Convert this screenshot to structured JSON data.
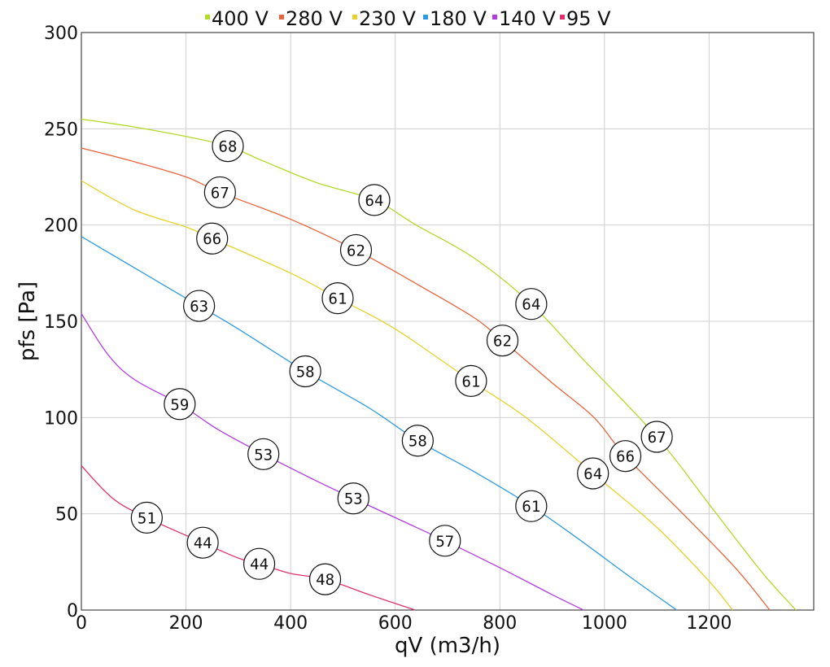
{
  "chart_data": {
    "type": "line",
    "title": "",
    "xlabel": "qV (m3/h)",
    "ylabel": "pfs [Pa]",
    "xlim": [
      0,
      1400
    ],
    "ylim": [
      0,
      300
    ],
    "x_ticks": [
      0,
      200,
      400,
      600,
      800,
      1000,
      1200
    ],
    "y_ticks": [
      0,
      50,
      100,
      150,
      200,
      250,
      300
    ],
    "x_tick_labels": [
      "0",
      "200",
      "400",
      "600",
      "800",
      "1000",
      "1200"
    ],
    "y_tick_labels": [
      "0",
      "50",
      "100",
      "150",
      "200",
      "250",
      "300"
    ],
    "grid": true,
    "legend_position": "top",
    "series": [
      {
        "name": "400 V",
        "color": "#b3d929",
        "points": [
          [
            0,
            255
          ],
          [
            100,
            251
          ],
          [
            200,
            246
          ],
          [
            280,
            241
          ],
          [
            350,
            233
          ],
          [
            450,
            222
          ],
          [
            560,
            213
          ],
          [
            640,
            200
          ],
          [
            750,
            183
          ],
          [
            860,
            159
          ],
          [
            960,
            130
          ],
          [
            1100,
            90
          ],
          [
            1200,
            55
          ],
          [
            1300,
            20
          ],
          [
            1366,
            0
          ]
        ],
        "markers": [
          {
            "x": 280,
            "y": 241,
            "label": "68"
          },
          {
            "x": 560,
            "y": 213,
            "label": "64"
          },
          {
            "x": 860,
            "y": 159,
            "label": "64"
          },
          {
            "x": 1100,
            "y": 90,
            "label": "67"
          }
        ]
      },
      {
        "name": "280 V",
        "color": "#e8643c",
        "points": [
          [
            0,
            240
          ],
          [
            100,
            233
          ],
          [
            200,
            225
          ],
          [
            265,
            217
          ],
          [
            400,
            203
          ],
          [
            525,
            187
          ],
          [
            650,
            168
          ],
          [
            750,
            152
          ],
          [
            805,
            140
          ],
          [
            900,
            118
          ],
          [
            980,
            100
          ],
          [
            1040,
            80
          ],
          [
            1150,
            50
          ],
          [
            1250,
            22
          ],
          [
            1316,
            0
          ]
        ],
        "markers": [
          {
            "x": 265,
            "y": 217,
            "label": "67"
          },
          {
            "x": 525,
            "y": 187,
            "label": "62"
          },
          {
            "x": 805,
            "y": 140,
            "label": "62"
          },
          {
            "x": 1040,
            "y": 80,
            "label": "66"
          }
        ]
      },
      {
        "name": "230 V",
        "color": "#e6d22a",
        "points": [
          [
            0,
            223
          ],
          [
            100,
            208
          ],
          [
            200,
            199
          ],
          [
            250,
            193
          ],
          [
            400,
            175
          ],
          [
            490,
            162
          ],
          [
            600,
            146
          ],
          [
            745,
            119
          ],
          [
            850,
            100
          ],
          [
            978,
            71
          ],
          [
            1100,
            43
          ],
          [
            1200,
            15
          ],
          [
            1245,
            0
          ]
        ],
        "markers": [
          {
            "x": 250,
            "y": 193,
            "label": "66"
          },
          {
            "x": 490,
            "y": 162,
            "label": "61"
          },
          {
            "x": 745,
            "y": 119,
            "label": "61"
          },
          {
            "x": 978,
            "y": 71,
            "label": "64"
          }
        ]
      },
      {
        "name": "180 V",
        "color": "#2e9be0",
        "points": [
          [
            0,
            194
          ],
          [
            100,
            178
          ],
          [
            225,
            158
          ],
          [
            300,
            146
          ],
          [
            428,
            124
          ],
          [
            550,
            105
          ],
          [
            643,
            88
          ],
          [
            750,
            72
          ],
          [
            860,
            54
          ],
          [
            950,
            37
          ],
          [
            1050,
            17
          ],
          [
            1138,
            0
          ]
        ],
        "markers": [
          {
            "x": 225,
            "y": 158,
            "label": "63"
          },
          {
            "x": 428,
            "y": 124,
            "label": "58"
          },
          {
            "x": 643,
            "y": 88,
            "label": "58"
          },
          {
            "x": 860,
            "y": 54,
            "label": "61"
          }
        ]
      },
      {
        "name": "140 V",
        "color": "#b03ce6",
        "points": [
          [
            0,
            154
          ],
          [
            50,
            133
          ],
          [
            100,
            120
          ],
          [
            188,
            107
          ],
          [
            260,
            94
          ],
          [
            348,
            81
          ],
          [
            450,
            67
          ],
          [
            520,
            58
          ],
          [
            600,
            48
          ],
          [
            695,
            36
          ],
          [
            800,
            22
          ],
          [
            900,
            8
          ],
          [
            960,
            0
          ]
        ],
        "markers": [
          {
            "x": 188,
            "y": 107,
            "label": "59"
          },
          {
            "x": 348,
            "y": 81,
            "label": "53"
          },
          {
            "x": 520,
            "y": 58,
            "label": "53"
          },
          {
            "x": 695,
            "y": 36,
            "label": "57"
          }
        ]
      },
      {
        "name": "95 V",
        "color": "#e0306e",
        "points": [
          [
            0,
            75
          ],
          [
            60,
            58
          ],
          [
            125,
            48
          ],
          [
            232,
            35
          ],
          [
            300,
            27
          ],
          [
            340,
            24
          ],
          [
            400,
            19
          ],
          [
            466,
            16
          ],
          [
            550,
            8
          ],
          [
            638,
            0
          ]
        ],
        "markers": [
          {
            "x": 125,
            "y": 48,
            "label": "51"
          },
          {
            "x": 232,
            "y": 35,
            "label": "44"
          },
          {
            "x": 340,
            "y": 24,
            "label": "44"
          },
          {
            "x": 466,
            "y": 16,
            "label": "48"
          }
        ]
      }
    ]
  }
}
